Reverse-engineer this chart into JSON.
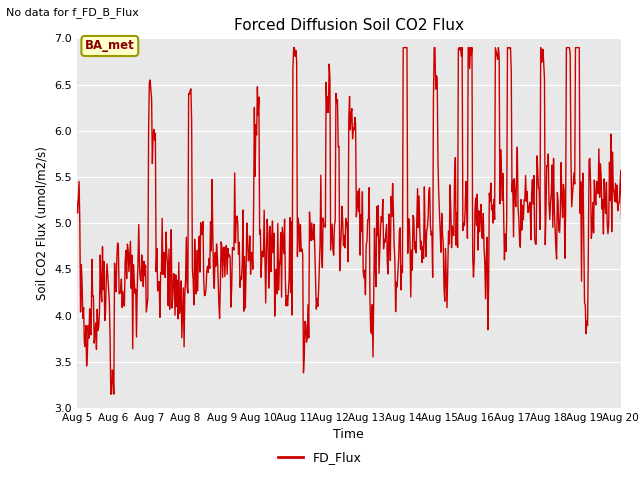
{
  "title": "Forced Diffusion Soil CO2 Flux",
  "xlabel": "Time",
  "ylabel": "Soil CO2 Flux (umol/m2/s)",
  "ylim": [
    3.0,
    7.0
  ],
  "yticks": [
    3.0,
    3.5,
    4.0,
    4.5,
    5.0,
    5.5,
    6.0,
    6.5,
    7.0
  ],
  "line_color": "#cc0000",
  "line_width": 1.0,
  "legend_label": "FD_Flux",
  "legend_line_color": "#cc0000",
  "top_left_text": "No data for f_FD_B_Flux",
  "ba_met_label": "BA_met",
  "axes_facecolor": "#e8e8e8",
  "figure_facecolor": "#ffffff",
  "grid_color": "#ffffff",
  "xtick_dates": [
    "Aug 5",
    "Aug 6",
    "Aug 7",
    "Aug 8",
    "Aug 9",
    "Aug 10",
    "Aug 11",
    "Aug 12",
    "Aug 13",
    "Aug 14",
    "Aug 15",
    "Aug 16",
    "Aug 17",
    "Aug 18",
    "Aug 19",
    "Aug 20"
  ],
  "seed": 42
}
